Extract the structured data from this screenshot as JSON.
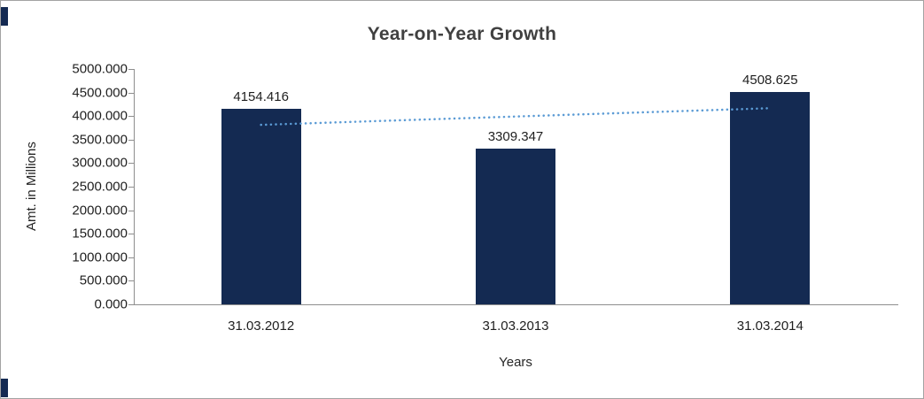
{
  "chart_data": {
    "type": "bar",
    "title": "Year-on-Year Growth",
    "categories": [
      "31.03.2012",
      "31.03.2013",
      "31.03.2014"
    ],
    "values": [
      4154.416,
      3309.347,
      4508.625
    ],
    "data_labels": [
      "4154.416",
      "3309.347",
      "4508.625"
    ],
    "series_name": "Amt. in Millions",
    "xlabel": "Years",
    "ylabel": "Amt. in Millions",
    "ylim": [
      0,
      5000
    ],
    "ytick_step": 500,
    "ytick_labels": [
      "5000.000",
      "4500.000",
      "4000.000",
      "3500.000",
      "3000.000",
      "2500.000",
      "2000.000",
      "1500.000",
      "1000.000",
      "500.000",
      "0.000"
    ],
    "grid": false,
    "legend": "none",
    "trendline": {
      "type": "linear",
      "style": "dotted"
    },
    "colors": {
      "bar": "#142A52",
      "trendline": "#5B9BD5",
      "title_text": "#404040",
      "axis_text": "#1F1F1F",
      "axis_line": "#8E8E8E",
      "frame_border": "#A3A3A3"
    }
  }
}
